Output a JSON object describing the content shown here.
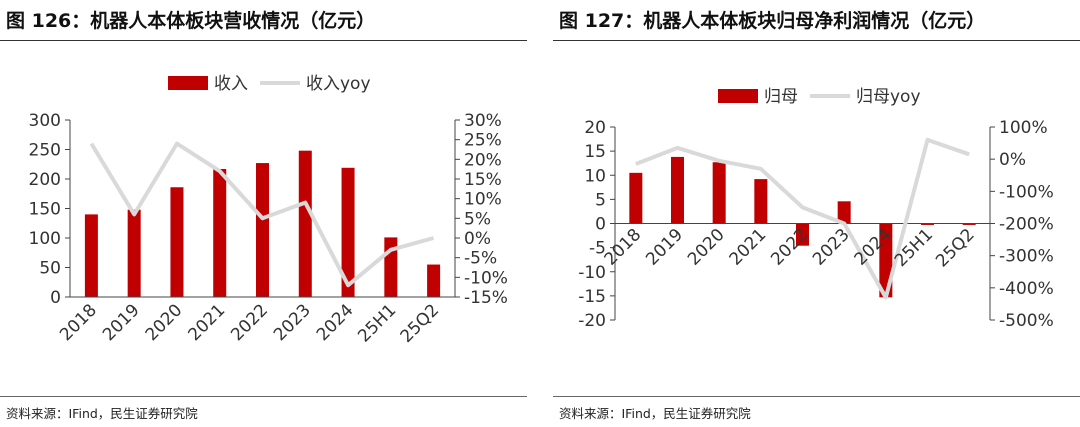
{
  "panels": [
    {
      "title": "图 126：机器人本体板块营收情况（亿元）",
      "source": "资料来源：IFind，民生证券研究院"
    },
    {
      "title": "图 127：机器人本体板块归母净利润情况（亿元）",
      "source": "资料来源：IFind，民生证券研究院"
    }
  ],
  "chart_data": [
    {
      "type": "bar",
      "title": "机器人本体板块营收情况（亿元）",
      "categories": [
        "2018",
        "2019",
        "2020",
        "2021",
        "2022",
        "2023",
        "2024",
        "25H1",
        "25Q2"
      ],
      "series": [
        {
          "name": "收入",
          "type": "bar",
          "axis": "left",
          "values": [
            140,
            148,
            186,
            217,
            227,
            248,
            219,
            101,
            55
          ]
        },
        {
          "name": "收入yoy",
          "type": "line",
          "axis": "right",
          "values": [
            24,
            6,
            24,
            17,
            5,
            9,
            -12,
            -3,
            0
          ]
        }
      ],
      "ylim_left": [
        0,
        300
      ],
      "yticks_left": [
        "0",
        "50",
        "100",
        "150",
        "200",
        "250",
        "300"
      ],
      "ylim_right": [
        -15,
        30
      ],
      "yticks_right": [
        "-15%",
        "-10%",
        "-5%",
        "0%",
        "5%",
        "10%",
        "15%",
        "20%",
        "25%",
        "30%"
      ],
      "legend_position": "top-center",
      "grid": false,
      "colors": {
        "bar": "#c00000",
        "line": "#d9d9d9"
      }
    },
    {
      "type": "bar",
      "title": "机器人本体板块归母净利润情况（亿元）",
      "categories": [
        "2018",
        "2019",
        "2020",
        "2021",
        "2022",
        "2023",
        "2024",
        "25H1",
        "25Q2"
      ],
      "series": [
        {
          "name": "归母",
          "type": "bar",
          "axis": "left",
          "values": [
            10.5,
            13.8,
            12.7,
            9.2,
            -4.6,
            4.6,
            -15.3,
            -0.3,
            -0.3
          ]
        },
        {
          "name": "归母yoy",
          "type": "line",
          "axis": "right",
          "values": [
            -15,
            35,
            -5,
            -30,
            -150,
            -200,
            -430,
            60,
            15
          ]
        }
      ],
      "ylim_left": [
        -20,
        20
      ],
      "yticks_left": [
        "-20",
        "-15",
        "-10",
        "-5",
        "0",
        "5",
        "10",
        "15",
        "20"
      ],
      "ylim_right": [
        -500,
        100
      ],
      "yticks_right": [
        "-500%",
        "-400%",
        "-300%",
        "-200%",
        "-100%",
        "0%",
        "100%"
      ],
      "legend_position": "top-center",
      "grid": false,
      "colors": {
        "bar": "#c00000",
        "line": "#d9d9d9"
      }
    }
  ]
}
